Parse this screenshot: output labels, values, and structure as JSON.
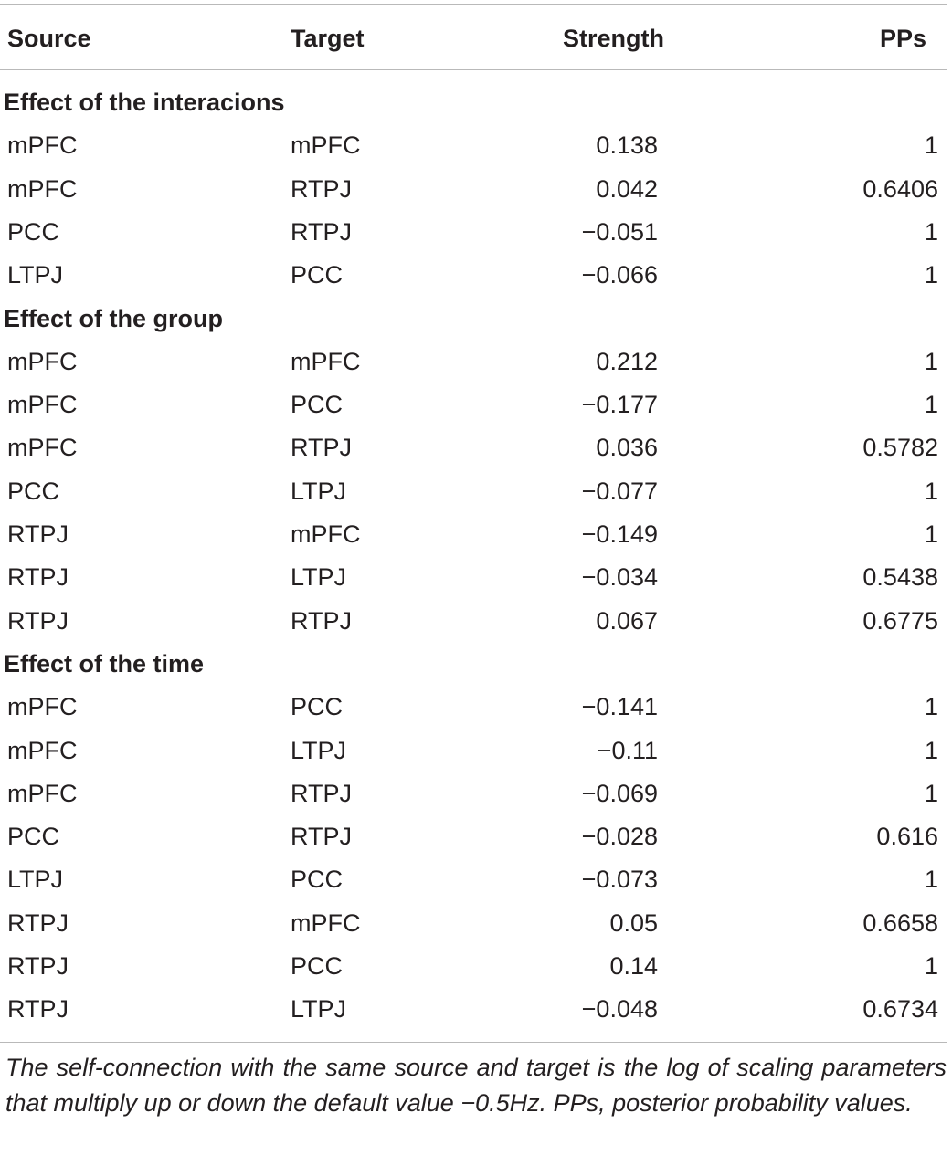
{
  "table": {
    "headers": {
      "source": "Source",
      "target": "Target",
      "strength": "Strength",
      "pps": "PPs"
    },
    "sections": [
      {
        "title": "Effect of the interacions",
        "rows": [
          {
            "source": "mPFC",
            "target": "mPFC",
            "strength": "0.138",
            "pps": "1"
          },
          {
            "source": "mPFC",
            "target": "RTPJ",
            "strength": "0.042",
            "pps": "0.6406"
          },
          {
            "source": "PCC",
            "target": "RTPJ",
            "strength": "−0.051",
            "pps": "1"
          },
          {
            "source": "LTPJ",
            "target": "PCC",
            "strength": "−0.066",
            "pps": "1"
          }
        ]
      },
      {
        "title": "Effect of the group",
        "rows": [
          {
            "source": "mPFC",
            "target": "mPFC",
            "strength": "0.212",
            "pps": "1"
          },
          {
            "source": "mPFC",
            "target": "PCC",
            "strength": "−0.177",
            "pps": "1"
          },
          {
            "source": "mPFC",
            "target": "RTPJ",
            "strength": "0.036",
            "pps": "0.5782"
          },
          {
            "source": "PCC",
            "target": "LTPJ",
            "strength": "−0.077",
            "pps": "1"
          },
          {
            "source": "RTPJ",
            "target": "mPFC",
            "strength": "−0.149",
            "pps": "1"
          },
          {
            "source": "RTPJ",
            "target": "LTPJ",
            "strength": "−0.034",
            "pps": "0.5438"
          },
          {
            "source": "RTPJ",
            "target": "RTPJ",
            "strength": "0.067",
            "pps": "0.6775"
          }
        ]
      },
      {
        "title": "Effect of the time",
        "rows": [
          {
            "source": "mPFC",
            "target": "PCC",
            "strength": "−0.141",
            "pps": "1"
          },
          {
            "source": "mPFC",
            "target": "LTPJ",
            "strength": "−0.11",
            "pps": "1"
          },
          {
            "source": "mPFC",
            "target": "RTPJ",
            "strength": "−0.069",
            "pps": "1"
          },
          {
            "source": "PCC",
            "target": "RTPJ",
            "strength": "−0.028",
            "pps": "0.616"
          },
          {
            "source": "LTPJ",
            "target": "PCC",
            "strength": "−0.073",
            "pps": "1"
          },
          {
            "source": "RTPJ",
            "target": "mPFC",
            "strength": "0.05",
            "pps": "0.6658"
          },
          {
            "source": "RTPJ",
            "target": "PCC",
            "strength": "0.14",
            "pps": "1"
          },
          {
            "source": "RTPJ",
            "target": "LTPJ",
            "strength": "−0.048",
            "pps": "0.6734"
          }
        ]
      }
    ],
    "footnote": "The self-connection with the same source and target is the log of scaling parameters that multiply up or down the default value −0.5Hz. PPs, posterior probability values."
  }
}
